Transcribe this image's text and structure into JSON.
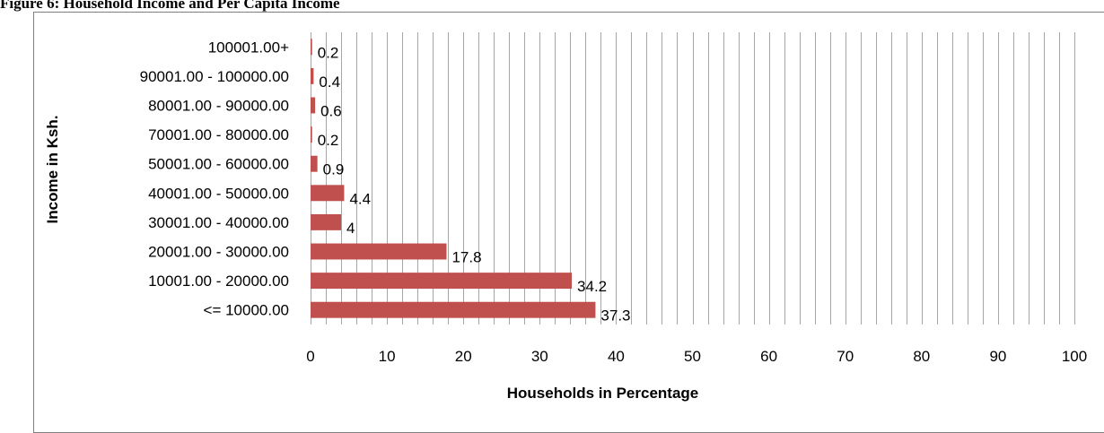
{
  "figure_title": "Figure 6: Household Income and Per Capita Income",
  "chart_data": {
    "type": "bar",
    "orientation": "horizontal",
    "categories": [
      "<= 10000.00",
      "10001.00 - 20000.00",
      "20001.00 - 30000.00",
      "30001.00 - 40000.00",
      "40001.00 - 50000.00",
      "50001.00 - 60000.00",
      "70001.00 - 80000.00",
      "80001.00 - 90000.00",
      "90001.00 - 100000.00",
      "100001.00+"
    ],
    "values": [
      37.3,
      34.2,
      17.8,
      4,
      4.4,
      0.9,
      0.2,
      0.6,
      0.4,
      0.2
    ],
    "data_labels": [
      "37.3",
      "34.2",
      "17.8",
      "4",
      "4.4",
      "0.9",
      "0.2",
      "0.6",
      "0.4",
      "0.2"
    ],
    "xlabel": "Households in Percentage",
    "ylabel": "Income in Ksh.",
    "xlim": [
      0,
      100
    ],
    "x_ticks": [
      0,
      10,
      20,
      30,
      40,
      50,
      60,
      70,
      80,
      90,
      100
    ],
    "minor_gridline_step": 2,
    "grid": true,
    "bar_color": "#c0504d",
    "gridline_color": "#a6a6a6"
  }
}
